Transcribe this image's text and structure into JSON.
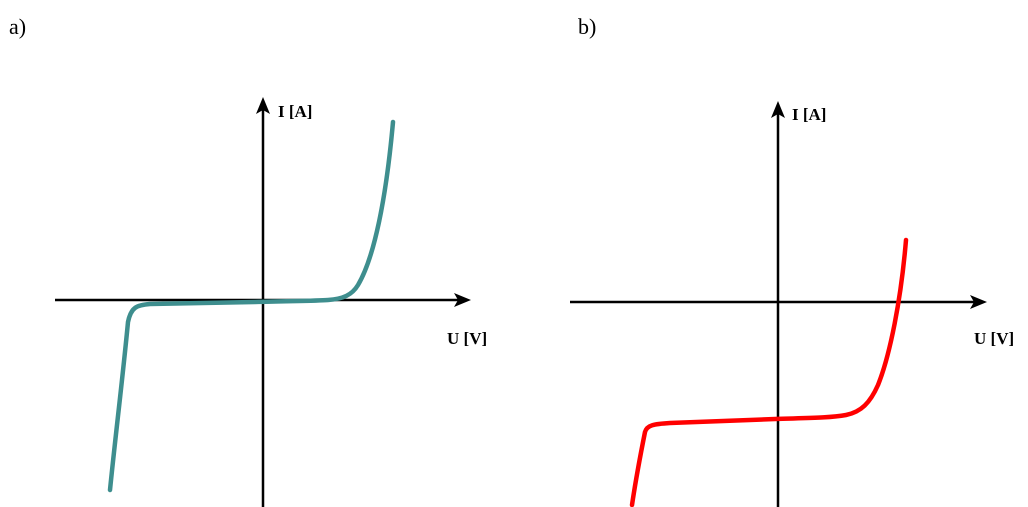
{
  "panels": [
    {
      "label": "a)",
      "y_axis_label": "I [A]",
      "x_axis_label": "U [V]",
      "curve_color": "#3e8e8e"
    },
    {
      "label": "b)",
      "y_axis_label": "I [A]",
      "x_axis_label": "U [V]",
      "curve_color": "#ff0000"
    }
  ]
}
